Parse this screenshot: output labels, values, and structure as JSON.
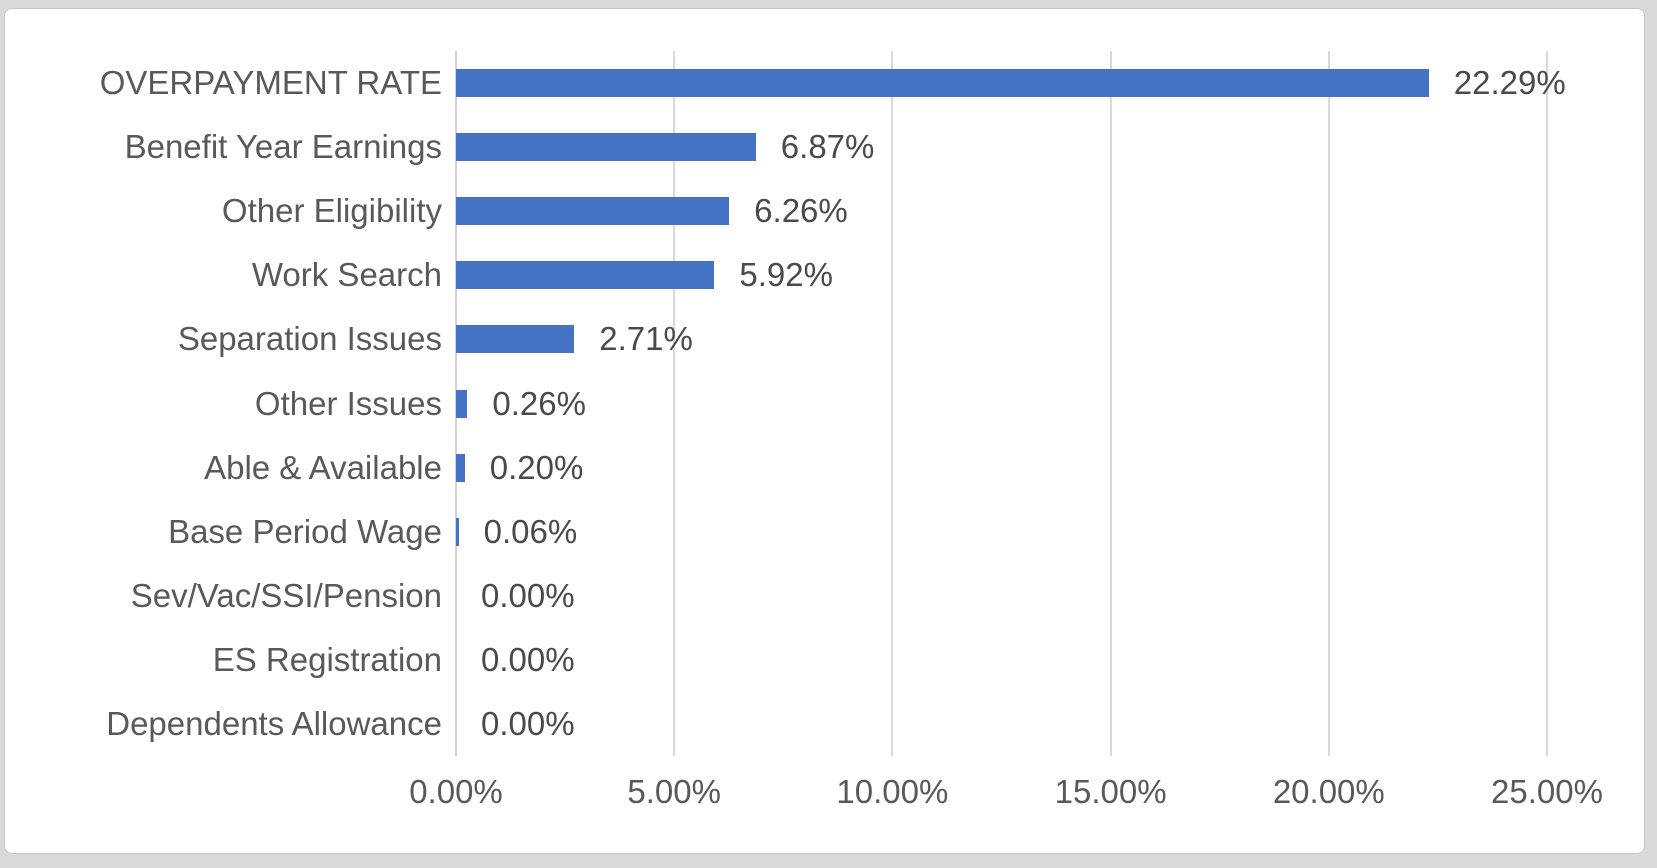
{
  "chart_data": {
    "type": "bar",
    "orientation": "horizontal",
    "title": "",
    "categories": [
      "OVERPAYMENT RATE",
      "Benefit Year Earnings",
      "Other Eligibility",
      "Work Search",
      "Separation Issues",
      "Other Issues",
      "Able & Available",
      "Base Period Wage",
      "Sev/Vac/SSI/Pension",
      "ES Registration",
      "Dependents Allowance"
    ],
    "values": [
      22.29,
      6.87,
      6.26,
      5.92,
      2.71,
      0.26,
      0.2,
      0.06,
      0.0,
      0.0,
      0.0
    ],
    "value_labels": [
      "22.29%",
      "6.87%",
      "6.26%",
      "5.92%",
      "2.71%",
      "0.26%",
      "0.20%",
      "0.06%",
      "0.00%",
      "0.00%",
      "0.00%"
    ],
    "x_ticks": [
      {
        "value": 0,
        "label": "0.00%"
      },
      {
        "value": 5,
        "label": "5.00%"
      },
      {
        "value": 10,
        "label": "10.00%"
      },
      {
        "value": 15,
        "label": "15.00%"
      },
      {
        "value": 20,
        "label": "20.00%"
      },
      {
        "value": 25,
        "label": "25.00%"
      }
    ],
    "xlim": [
      0,
      25
    ],
    "grid": true,
    "legend": "none",
    "data_labels": "outside-end",
    "colors": {
      "bar": "#4472c4",
      "gridline": "#d9d9d9",
      "axis_line": "#d2d2d2",
      "category_text": "#595959",
      "value_text": "#4a4a4a",
      "tick_text": "#595959",
      "chart_background": "#ffffff",
      "page_background": "#d9d9d9",
      "card_border": "#c6c6c6"
    }
  }
}
